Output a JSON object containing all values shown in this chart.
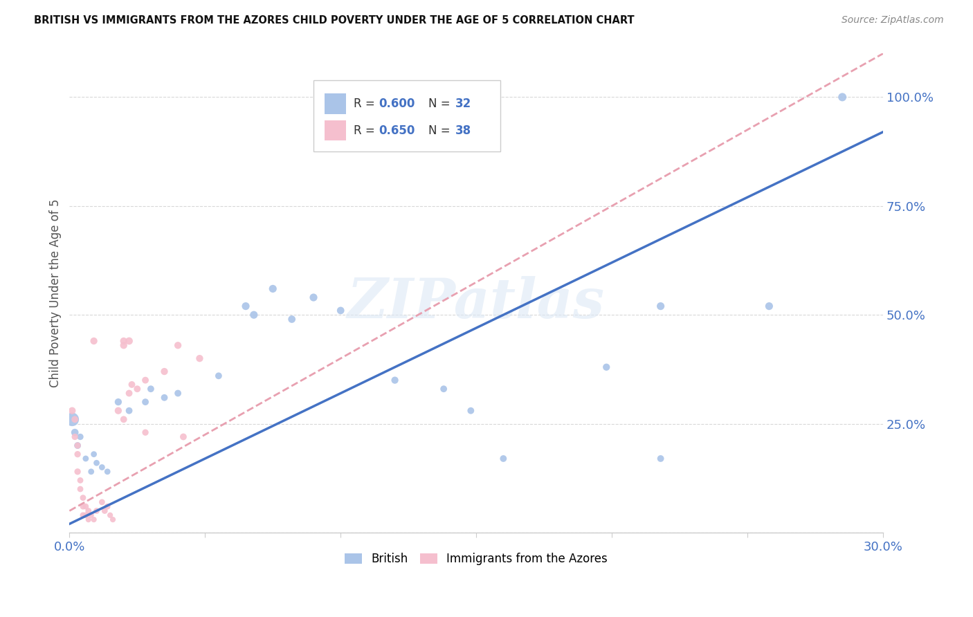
{
  "title": "BRITISH VS IMMIGRANTS FROM THE AZORES CHILD POVERTY UNDER THE AGE OF 5 CORRELATION CHART",
  "source": "Source: ZipAtlas.com",
  "ylabel": "Child Poverty Under the Age of 5",
  "xmin": 0.0,
  "xmax": 0.3,
  "ymin": 0.0,
  "ymax": 1.1,
  "british_R": "0.600",
  "british_N": "32",
  "azores_R": "0.650",
  "azores_N": "38",
  "british_color": "#aac4e8",
  "azores_color": "#f5bfce",
  "british_line_color": "#4472c4",
  "azores_line_color": "#e8a0b0",
  "british_line": [
    0.0,
    0.02,
    0.3,
    0.92
  ],
  "azores_line": [
    0.0,
    0.05,
    0.3,
    1.1
  ],
  "legend_label_british": "British",
  "legend_label_azores": "Immigrants from the Azores",
  "watermark": "ZIPatlas",
  "british_points": [
    [
      0.001,
      0.26,
      200
    ],
    [
      0.002,
      0.23,
      60
    ],
    [
      0.003,
      0.2,
      50
    ],
    [
      0.004,
      0.22,
      45
    ],
    [
      0.006,
      0.17,
      40
    ],
    [
      0.008,
      0.14,
      40
    ],
    [
      0.009,
      0.18,
      40
    ],
    [
      0.01,
      0.16,
      40
    ],
    [
      0.012,
      0.15,
      40
    ],
    [
      0.014,
      0.14,
      40
    ],
    [
      0.018,
      0.3,
      55
    ],
    [
      0.022,
      0.28,
      50
    ],
    [
      0.028,
      0.3,
      50
    ],
    [
      0.03,
      0.33,
      50
    ],
    [
      0.035,
      0.31,
      50
    ],
    [
      0.04,
      0.32,
      50
    ],
    [
      0.055,
      0.36,
      50
    ],
    [
      0.065,
      0.52,
      65
    ],
    [
      0.068,
      0.5,
      65
    ],
    [
      0.075,
      0.56,
      65
    ],
    [
      0.082,
      0.49,
      60
    ],
    [
      0.09,
      0.54,
      65
    ],
    [
      0.1,
      0.51,
      60
    ],
    [
      0.12,
      0.35,
      55
    ],
    [
      0.138,
      0.33,
      50
    ],
    [
      0.148,
      0.28,
      50
    ],
    [
      0.16,
      0.17,
      50
    ],
    [
      0.198,
      0.38,
      55
    ],
    [
      0.218,
      0.52,
      65
    ],
    [
      0.218,
      0.17,
      50
    ],
    [
      0.258,
      0.52,
      65
    ],
    [
      0.285,
      1.0,
      75
    ]
  ],
  "azores_points": [
    [
      0.001,
      0.28,
      55
    ],
    [
      0.002,
      0.26,
      50
    ],
    [
      0.002,
      0.22,
      45
    ],
    [
      0.003,
      0.2,
      45
    ],
    [
      0.003,
      0.18,
      45
    ],
    [
      0.003,
      0.14,
      45
    ],
    [
      0.004,
      0.12,
      40
    ],
    [
      0.004,
      0.1,
      40
    ],
    [
      0.005,
      0.08,
      40
    ],
    [
      0.005,
      0.06,
      40
    ],
    [
      0.005,
      0.04,
      40
    ],
    [
      0.006,
      0.06,
      40
    ],
    [
      0.006,
      0.04,
      40
    ],
    [
      0.007,
      0.05,
      40
    ],
    [
      0.007,
      0.03,
      35
    ],
    [
      0.008,
      0.04,
      35
    ],
    [
      0.009,
      0.03,
      35
    ],
    [
      0.01,
      0.05,
      40
    ],
    [
      0.012,
      0.07,
      40
    ],
    [
      0.013,
      0.05,
      40
    ],
    [
      0.014,
      0.06,
      40
    ],
    [
      0.015,
      0.04,
      35
    ],
    [
      0.016,
      0.03,
      35
    ],
    [
      0.018,
      0.28,
      55
    ],
    [
      0.02,
      0.26,
      50
    ],
    [
      0.02,
      0.44,
      55
    ],
    [
      0.022,
      0.32,
      50
    ],
    [
      0.023,
      0.34,
      50
    ],
    [
      0.025,
      0.33,
      50
    ],
    [
      0.028,
      0.35,
      50
    ],
    [
      0.028,
      0.23,
      45
    ],
    [
      0.035,
      0.37,
      55
    ],
    [
      0.04,
      0.43,
      55
    ],
    [
      0.042,
      0.22,
      50
    ],
    [
      0.048,
      0.4,
      55
    ],
    [
      0.02,
      0.43,
      55
    ],
    [
      0.009,
      0.44,
      55
    ],
    [
      0.022,
      0.44,
      60
    ]
  ]
}
